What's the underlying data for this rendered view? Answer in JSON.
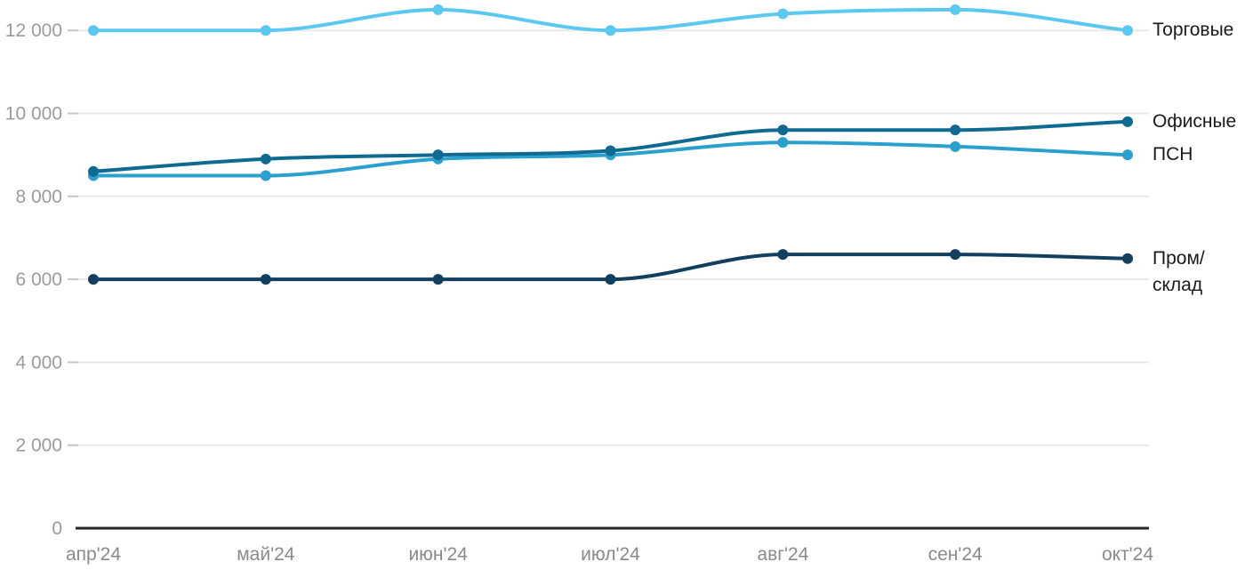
{
  "chart_data": {
    "type": "line",
    "title": "",
    "xlabel": "",
    "ylabel": "",
    "categories": [
      "апр'24",
      "май'24",
      "июн'24",
      "июл'24",
      "авг'24",
      "сен'24",
      "окт'24"
    ],
    "series": [
      {
        "key": "torgovye",
        "name": "Торговые",
        "color": "#5bc8f2",
        "values": [
          12000,
          12000,
          12500,
          12000,
          12400,
          12500,
          12000
        ]
      },
      {
        "key": "ofisnye",
        "name": "Офисные",
        "color": "#0f6a92",
        "values": [
          8600,
          8900,
          9000,
          9100,
          9600,
          9600,
          9800
        ]
      },
      {
        "key": "psn",
        "name": "ПСН",
        "color": "#2aa0ce",
        "values": [
          8500,
          8500,
          8900,
          9000,
          9300,
          9200,
          9000
        ]
      },
      {
        "key": "prom-sklad",
        "name": "Пром/склад",
        "color": "#123f60",
        "values": [
          6000,
          6000,
          6000,
          6000,
          6600,
          6600,
          6500
        ]
      }
    ],
    "y_axis": {
      "range": [
        0,
        12900
      ],
      "ticks": [
        {
          "value": 0,
          "label": "0"
        },
        {
          "value": 2000,
          "label": "2 000"
        },
        {
          "value": 4000,
          "label": "4 000"
        },
        {
          "value": 6000,
          "label": "6 000"
        },
        {
          "value": 8000,
          "label": "8 000"
        },
        {
          "value": 10000,
          "label": "10 000"
        },
        {
          "value": 12000,
          "label": "12 000"
        }
      ]
    },
    "grid": "horizontal",
    "legend_position": "right-of-line-ends",
    "style_colors": {
      "gridline": "#e8e8e8",
      "tick_mark": "#c6c6c6",
      "zero_axis": "#262626",
      "y_tick_label": "#9b9b9b",
      "x_tick_label": "#8a8a8a",
      "legend_text": "#1a1a1a",
      "background": "#ffffff"
    }
  },
  "legend": {
    "items": [
      {
        "label": "Торговые"
      },
      {
        "label": "Офисные"
      },
      {
        "label": "ПСН"
      },
      {
        "label_line1": "Пром/",
        "label_line2": "склад"
      }
    ]
  }
}
